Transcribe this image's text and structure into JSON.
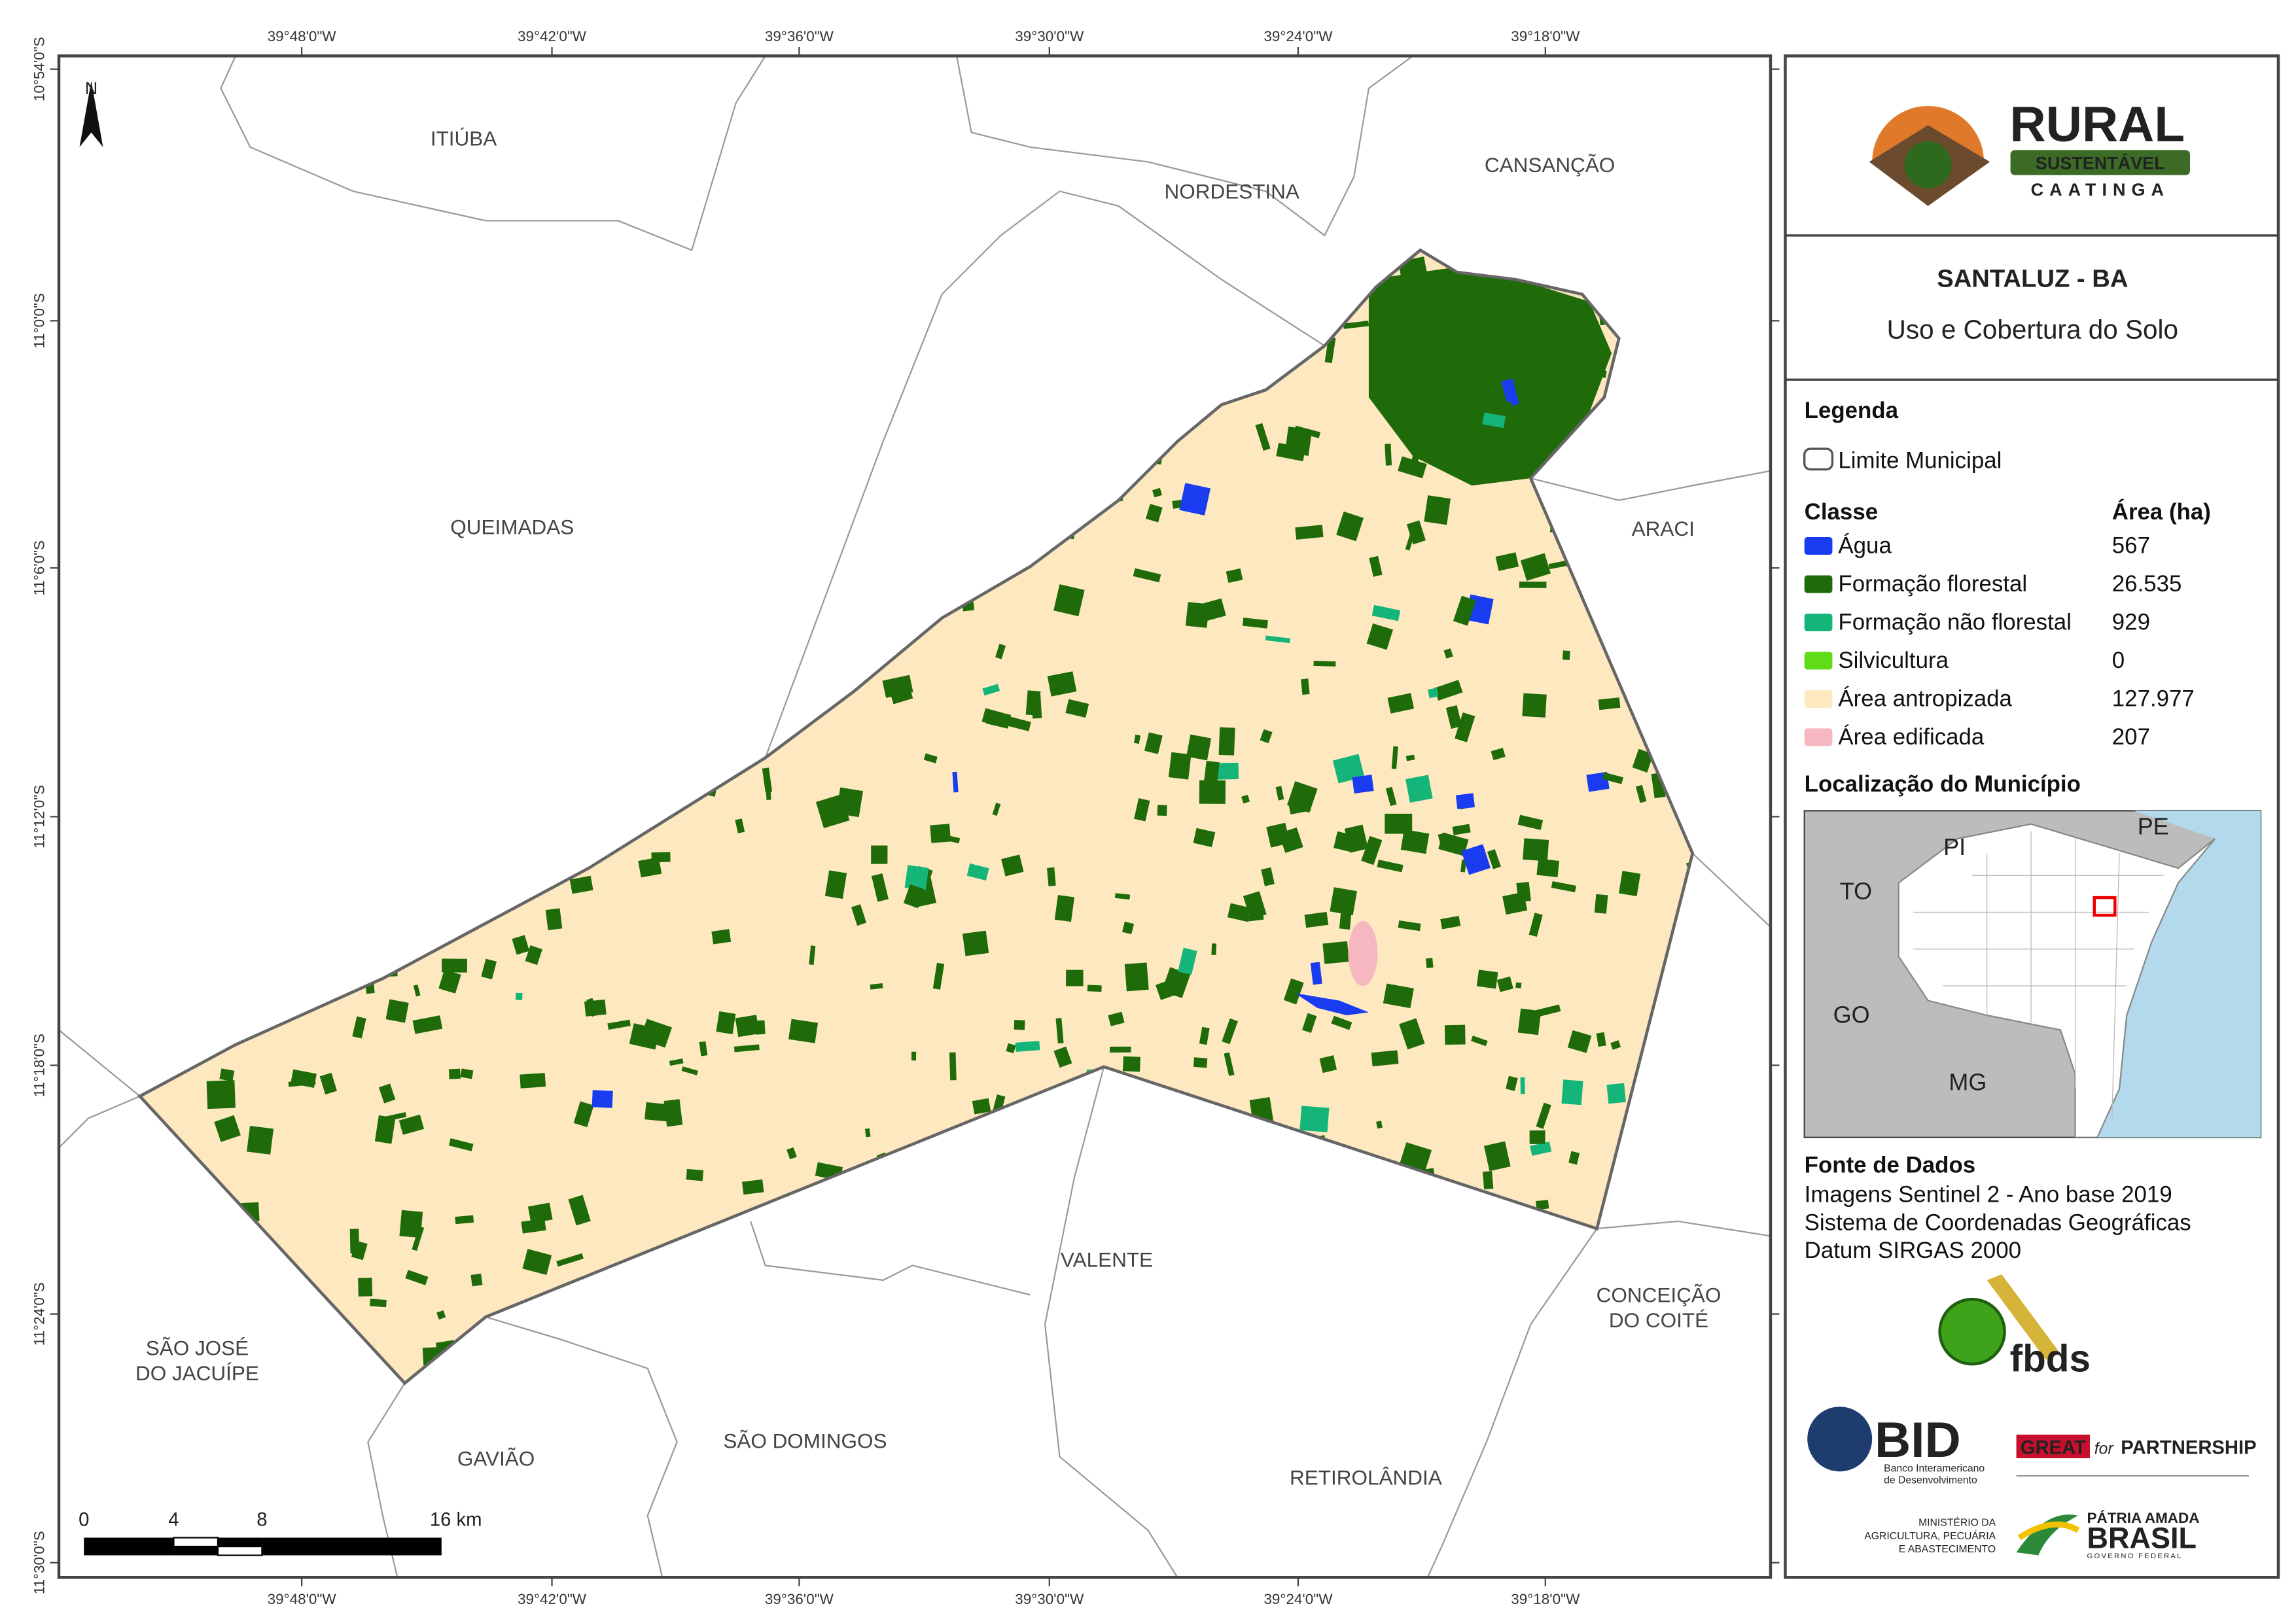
{
  "map": {
    "coords_x": [
      "39°48'0\"W",
      "39°42'0\"W",
      "39°36'0\"W",
      "39°30'0\"W",
      "39°24'0\"W",
      "39°18'0\"W"
    ],
    "coords_y": [
      "10°54'0\"S",
      "11°0'0\"S",
      "11°6'0\"S",
      "11°12'0\"S",
      "11°18'0\"S",
      "11°24'0\"S",
      "11°30'0\"S"
    ],
    "places": [
      "ITIÚBA",
      "NORDESTINA",
      "CANSANÇÃO",
      "QUEIMADAS",
      "ARACI",
      "VALENTE",
      "CONCEIÇÃO",
      "DO COITÉ",
      "SÃO JOSÉ",
      "DO JACUÍPE",
      "GAVIÃO",
      "SÃO DOMINGOS",
      "RETIROLÂNDIA"
    ],
    "north": "N",
    "scale": [
      "0",
      "4",
      "8",
      "16 km"
    ]
  },
  "panel": {
    "logo": [
      "RURAL",
      "SUSTENTÁVEL",
      "CAATINGA"
    ],
    "title": "SANTALUZ - BA",
    "subtitle": "Uso e Cobertura do Solo",
    "legend_title": "Legenda",
    "boundary": "Limite Municipal",
    "class_header": "Classe",
    "area_header": "Área (ha)",
    "classes": [
      {
        "name": "Água",
        "area": "567",
        "color": "#1a3cf0"
      },
      {
        "name": "Formação florestal",
        "area": "26.535",
        "color": "#1f6b0a"
      },
      {
        "name": "Formação não florestal",
        "area": "929",
        "color": "#15b57a"
      },
      {
        "name": "Silvicultura",
        "area": "0",
        "color": "#5fdc17"
      },
      {
        "name": "Área antropizada",
        "area": "127.977",
        "color": "#fde8c0"
      },
      {
        "name": "Área edificada",
        "area": "207",
        "color": "#f5b8c0"
      }
    ],
    "location_title": "Localização do Município",
    "inset_labels": [
      "PI",
      "PE",
      "TO",
      "GO",
      "MG"
    ],
    "source_title": "Fonte de Dados",
    "source_lines": [
      "Imagens Sentinel 2 - Ano base 2019",
      "Sistema de Coordenadas Geográficas",
      "Datum SIRGAS 2000"
    ],
    "logos": [
      "fbds",
      "BID",
      "Banco Interamericano",
      "de Desenvolvimento",
      "GREAT",
      "for",
      "PARTNERSHIP",
      "MINISTÉRIO DA",
      "AGRICULTURA, PECUÁRIA",
      "E ABASTECIMENTO",
      "PÁTRIA AMADA",
      "BRASIL",
      "GOVERNO FEDERAL"
    ]
  }
}
